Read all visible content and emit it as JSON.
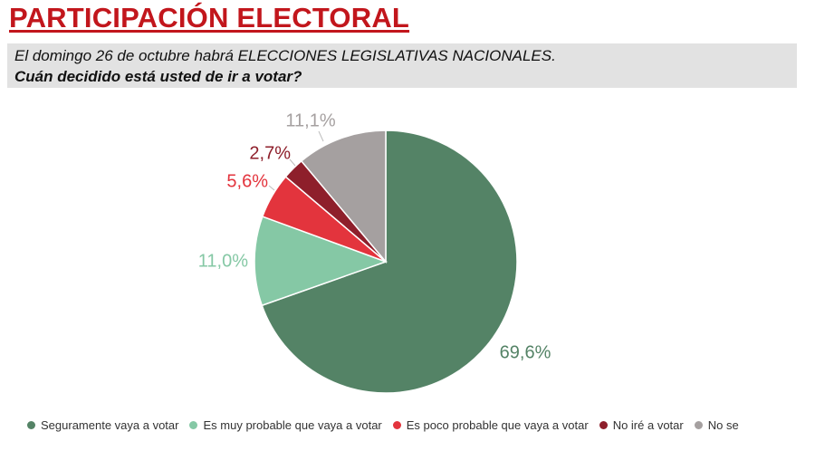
{
  "header": {
    "title": "PARTICIPACIÓN ELECTORAL",
    "line1": "El domingo 26 de octubre habrá ELECCIONES LEGISLATIVAS NACIONALES.",
    "line2": "Cuán decidido está usted de ir a votar?"
  },
  "chart_data": {
    "type": "pie",
    "slices": [
      {
        "label": "Seguramente vaya a votar",
        "value": 69.6,
        "display": "69,6%",
        "color": "#548366"
      },
      {
        "label": "Es muy probable que vaya a votar",
        "value": 11.0,
        "display": "11,0%",
        "color": "#85c8a5"
      },
      {
        "label": "Es poco probable que vaya a votar",
        "value": 5.6,
        "display": "5,6%",
        "color": "#e3343d"
      },
      {
        "label": "No iré a votar",
        "value": 2.7,
        "display": "2,7%",
        "color": "#8e1f2b"
      },
      {
        "label": "No se",
        "value": 11.1,
        "display": "11,1%",
        "color": "#a5a0a0"
      }
    ],
    "start": "12 o'clock",
    "direction": "clockwise",
    "legend_position": "bottom"
  }
}
